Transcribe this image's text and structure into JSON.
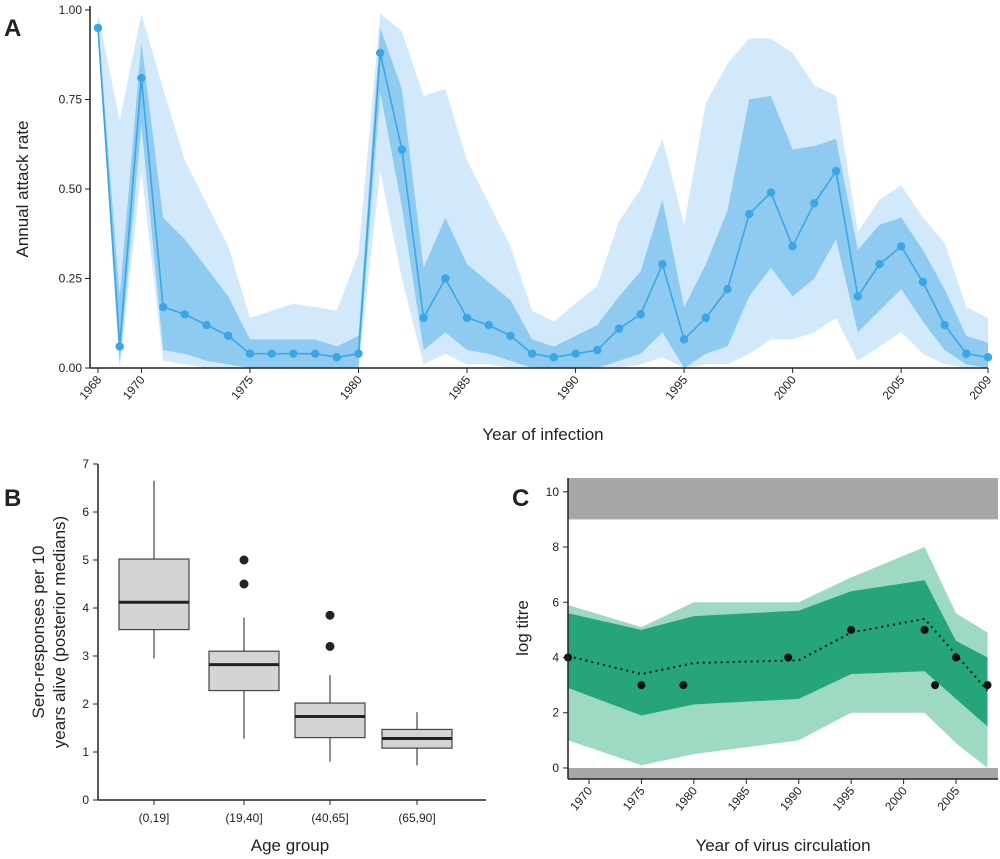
{
  "colors": {
    "ci_outer": "#d2e9fb",
    "ci_inner": "#8fcbf1",
    "median": "#3aa6e6",
    "green_outer": "#9ed9c2",
    "green_inner": "#27a57a",
    "grey_band": "#a7a7a7",
    "box_fill": "#d4d4d4",
    "ink": "#222222"
  },
  "chart_data": [
    {
      "panel": "A",
      "type": "line",
      "xlabel": "Year of infection",
      "ylabel": "Annual attack rate",
      "xlim": [
        1968,
        2009
      ],
      "ylim": [
        0,
        1
      ],
      "x_ticks": [
        "1968",
        "1970",
        "1975",
        "1980",
        "1985",
        "1990",
        "1995",
        "2000",
        "2005",
        "2009"
      ],
      "y_ticks": [
        "0.00",
        "0.25",
        "0.50",
        "0.75",
        "1.00"
      ],
      "years": [
        1968,
        1969,
        1970,
        1971,
        1972,
        1973,
        1974,
        1975,
        1976,
        1977,
        1978,
        1979,
        1980,
        1981,
        1982,
        1983,
        1984,
        1985,
        1986,
        1987,
        1988,
        1989,
        1990,
        1991,
        1992,
        1993,
        1994,
        1995,
        1996,
        1997,
        1998,
        1999,
        2000,
        2001,
        2002,
        2003,
        2004,
        2005,
        2006,
        2007,
        2008,
        2009
      ],
      "median": [
        0.95,
        0.06,
        0.81,
        0.17,
        0.15,
        0.12,
        0.09,
        0.04,
        0.04,
        0.04,
        0.04,
        0.03,
        0.04,
        0.88,
        0.61,
        0.14,
        0.25,
        0.14,
        0.12,
        0.09,
        0.04,
        0.03,
        0.04,
        0.05,
        0.11,
        0.15,
        0.29,
        0.08,
        0.14,
        0.22,
        0.43,
        0.49,
        0.34,
        0.46,
        0.55,
        0.2,
        0.29,
        0.34,
        0.24,
        0.12,
        0.04,
        0.03
      ],
      "inner_low": [
        0.93,
        0.01,
        0.68,
        0.05,
        0.04,
        0.02,
        0.01,
        0.0,
        0.0,
        0.0,
        0.0,
        0.0,
        0.0,
        0.77,
        0.45,
        0.05,
        0.1,
        0.05,
        0.04,
        0.02,
        0.0,
        0.0,
        0.0,
        0.0,
        0.02,
        0.04,
        0.1,
        0.0,
        0.04,
        0.06,
        0.2,
        0.28,
        0.2,
        0.25,
        0.36,
        0.1,
        0.16,
        0.22,
        0.13,
        0.05,
        0.01,
        0.0
      ],
      "inner_high": [
        0.97,
        0.2,
        0.91,
        0.42,
        0.36,
        0.28,
        0.2,
        0.08,
        0.08,
        0.08,
        0.08,
        0.06,
        0.09,
        0.95,
        0.78,
        0.28,
        0.42,
        0.29,
        0.24,
        0.19,
        0.08,
        0.06,
        0.09,
        0.12,
        0.2,
        0.27,
        0.47,
        0.17,
        0.29,
        0.44,
        0.75,
        0.76,
        0.61,
        0.62,
        0.64,
        0.33,
        0.4,
        0.42,
        0.33,
        0.22,
        0.09,
        0.07
      ],
      "outer_low": [
        0.92,
        0.0,
        0.55,
        0.02,
        0.01,
        0.0,
        0.0,
        0.0,
        0.0,
        0.0,
        0.0,
        0.0,
        0.0,
        0.55,
        0.25,
        0.01,
        0.04,
        0.01,
        0.01,
        0.0,
        0.0,
        0.0,
        0.0,
        0.0,
        0.0,
        0.01,
        0.03,
        0.0,
        0.01,
        0.01,
        0.04,
        0.08,
        0.08,
        0.1,
        0.14,
        0.02,
        0.06,
        0.1,
        0.04,
        0.01,
        0.0,
        0.0
      ],
      "outer_high": [
        0.99,
        0.69,
        0.99,
        0.78,
        0.58,
        0.46,
        0.34,
        0.14,
        0.16,
        0.18,
        0.17,
        0.16,
        0.32,
        0.99,
        0.94,
        0.76,
        0.78,
        0.58,
        0.46,
        0.34,
        0.16,
        0.13,
        0.18,
        0.23,
        0.41,
        0.5,
        0.64,
        0.4,
        0.74,
        0.85,
        0.92,
        0.92,
        0.88,
        0.79,
        0.76,
        0.38,
        0.47,
        0.51,
        0.42,
        0.35,
        0.17,
        0.14
      ]
    },
    {
      "panel": "B",
      "type": "box",
      "xlabel": "Age group",
      "ylabel_lines": [
        "Sero-responses per 10",
        "years alive (posterior medians)"
      ],
      "ylim": [
        0,
        7
      ],
      "y_ticks": [
        "0",
        "1",
        "2",
        "3",
        "4",
        "5",
        "6",
        "7"
      ],
      "boxes": [
        {
          "label": "(0,19]",
          "min": 2.95,
          "q1": 3.55,
          "median": 4.12,
          "q3": 5.02,
          "max": 6.65,
          "outliers": []
        },
        {
          "label": "(19,40]",
          "min": 1.28,
          "q1": 2.28,
          "median": 2.82,
          "q3": 3.1,
          "max": 3.8,
          "outliers": [
            4.5,
            5.0
          ]
        },
        {
          "label": "(40,65]",
          "min": 0.8,
          "q1": 1.3,
          "median": 1.74,
          "q3": 2.02,
          "max": 2.6,
          "outliers": [
            3.2,
            3.85
          ]
        },
        {
          "label": "(65,90]",
          "min": 0.72,
          "q1": 1.08,
          "median": 1.28,
          "q3": 1.47,
          "max": 1.83,
          "outliers": []
        }
      ]
    },
    {
      "panel": "C",
      "type": "area",
      "xlabel": "Year of virus circulation",
      "ylabel": "log titre",
      "xlim": [
        1968,
        2009
      ],
      "ylim": [
        -0.4,
        10.5
      ],
      "x_ticks": [
        "1970",
        "1975",
        "1980",
        "1985",
        "1990",
        "1995",
        "2000",
        "2005"
      ],
      "y_ticks": [
        "0",
        "2",
        "4",
        "6",
        "8",
        "10"
      ],
      "grey_bands": [
        [
          9,
          10.5
        ],
        [
          -0.4,
          0
        ]
      ],
      "x": [
        1968,
        1975,
        1980,
        1990,
        1995,
        2002,
        2005,
        2008
      ],
      "median": [
        4.05,
        3.4,
        3.8,
        3.9,
        4.9,
        5.4,
        4.1,
        2.8
      ],
      "inner_low": [
        2.9,
        1.9,
        2.3,
        2.5,
        3.4,
        3.5,
        2.5,
        1.5
      ],
      "inner_high": [
        5.6,
        5.0,
        5.5,
        5.7,
        6.4,
        6.8,
        4.6,
        4.0
      ],
      "outer_low": [
        1.0,
        0.1,
        0.5,
        1.0,
        2.0,
        2.0,
        0.9,
        0.0
      ],
      "outer_high": [
        5.9,
        5.1,
        6.0,
        6.0,
        6.9,
        8.0,
        5.6,
        4.9
      ],
      "points": [
        [
          1968,
          4
        ],
        [
          1975,
          3
        ],
        [
          1979,
          3
        ],
        [
          1989,
          4
        ],
        [
          1995,
          5
        ],
        [
          2002,
          5
        ],
        [
          2003,
          3
        ],
        [
          2005,
          4
        ],
        [
          2008,
          3
        ]
      ]
    }
  ],
  "panel_labels": [
    "A",
    "B",
    "C"
  ]
}
